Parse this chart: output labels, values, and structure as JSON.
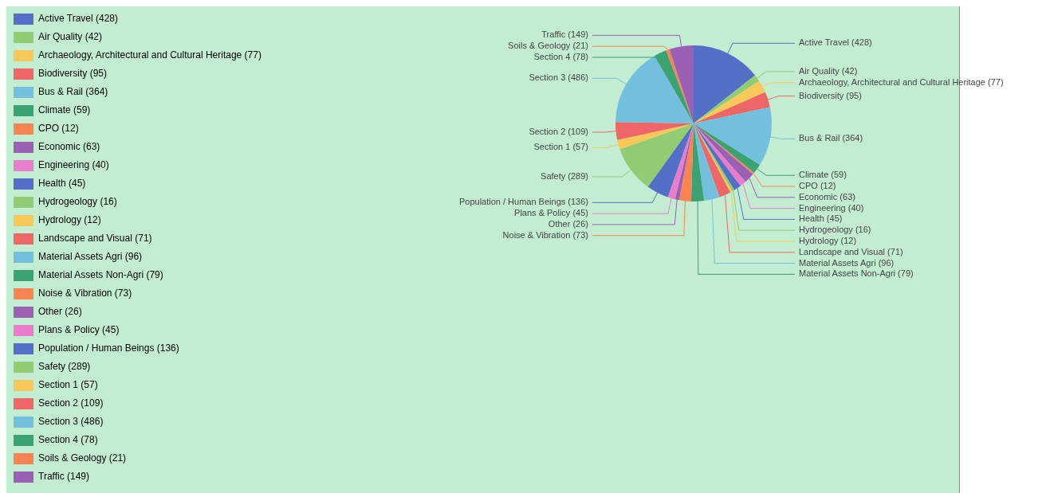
{
  "chart_data": {
    "type": "pie",
    "categories": [
      "Active Travel",
      "Air Quality",
      "Archaeology, Architectural and Cultural Heritage",
      "Biodiversity",
      "Bus & Rail",
      "Climate",
      "CPO",
      "Economic",
      "Engineering",
      "Health",
      "Hydrogeology",
      "Hydrology",
      "Landscape and Visual",
      "Material Assets Agri",
      "Material Assets Non-Agri",
      "Noise & Vibration",
      "Other",
      "Plans & Policy",
      "Population / Human Beings",
      "Safety",
      "Section 1",
      "Section 2",
      "Section 3",
      "Section 4",
      "Soils & Geology",
      "Traffic"
    ],
    "values": [
      428,
      42,
      77,
      95,
      364,
      59,
      12,
      63,
      40,
      45,
      16,
      12,
      71,
      96,
      79,
      73,
      26,
      45,
      136,
      289,
      57,
      109,
      486,
      78,
      21,
      149
    ],
    "value_labels": [
      "(428)",
      "(42)",
      "(77)",
      "(95)",
      "(364)",
      "(59)",
      "(12)",
      "(63)",
      "(40)",
      "(45)",
      "(16)",
      "(12)",
      "(71)",
      "(96)",
      "(79)",
      "(73)",
      "(26)",
      "(45)",
      "(136)",
      "(289)",
      "(57)",
      "(109)",
      "(486)",
      "(78)",
      "(21)",
      "(149)"
    ],
    "colors": [
      "#5470c6",
      "#91cc75",
      "#fac858",
      "#ee6666",
      "#73c0de",
      "#3ba272",
      "#fc8452",
      "#9a60b4",
      "#ea7ccc",
      "#5470c6",
      "#91cc75",
      "#fac858",
      "#ee6666",
      "#73c0de",
      "#3ba272",
      "#fc8452",
      "#9a60b4",
      "#ea7ccc",
      "#5470c6",
      "#91cc75",
      "#fac858",
      "#ee6666",
      "#73c0de",
      "#3ba272",
      "#fc8452",
      "#9a60b4"
    ],
    "legend": "left"
  }
}
